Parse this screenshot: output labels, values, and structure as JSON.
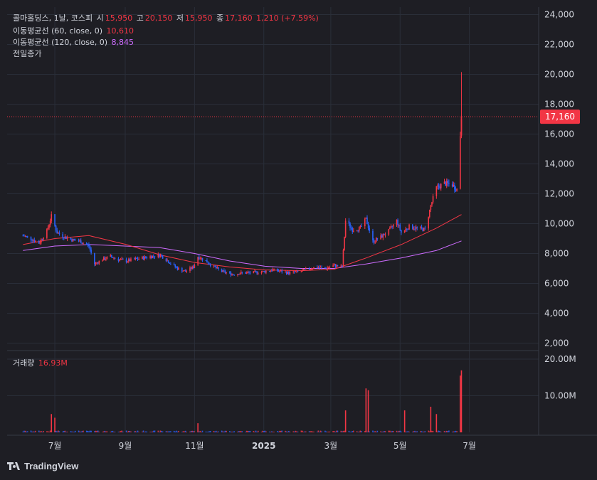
{
  "header": {
    "name": "콜마홀딩스, 1날, 코스피",
    "open_label": "시",
    "open": "15,950",
    "high_label": "고",
    "high": "20,150",
    "low_label": "저",
    "low": "15,950",
    "close_label": "종",
    "close": "17,160",
    "change": "1,210 (+7.59%)"
  },
  "ma60": {
    "label": "이동평균선 (60, close, 0)",
    "value": "10,610",
    "color": "#f23645"
  },
  "ma120": {
    "label": "이동평균선 (120, close, 0)",
    "value": "8,845",
    "color": "#ce6cff"
  },
  "prev_close_label": "전일종가",
  "volume": {
    "label": "거래량",
    "value": "16.93M"
  },
  "price_tag": "17,160",
  "brand": "TradingView",
  "colors": {
    "up": "#f23645",
    "down": "#2962ff",
    "bg": "#1e1e24",
    "grid": "#2a2e39"
  },
  "chart_data": {
    "type": "candlestick",
    "title": "콜마홀딩스, 1날, 코스피",
    "y_ticks": [
      "24,000",
      "22,000",
      "20,000",
      "18,000",
      "16,000",
      "14,000",
      "12,000",
      "10,000",
      "8,000",
      "6,000",
      "4,000",
      "2,000"
    ],
    "vol_ticks": [
      "20.00M",
      "10.00M"
    ],
    "x_ticks": [
      "7월",
      "9월",
      "11월",
      "2025",
      "3월",
      "5월",
      "7월"
    ],
    "ylim": [
      1500,
      24500
    ],
    "vol_lim": [
      0,
      20000000
    ],
    "last_close": 17160,
    "close_series": [
      {
        "x": "2024-06-03",
        "y": 9200
      },
      {
        "x": "2024-06-10",
        "y": 9000
      },
      {
        "x": "2024-06-17",
        "y": 8700
      },
      {
        "x": "2024-06-24",
        "y": 9500
      },
      {
        "x": "2024-06-28",
        "y": 10500
      },
      {
        "x": "2024-07-03",
        "y": 9400
      },
      {
        "x": "2024-07-10",
        "y": 9100
      },
      {
        "x": "2024-07-17",
        "y": 8900
      },
      {
        "x": "2024-07-24",
        "y": 8800
      },
      {
        "x": "2024-07-31",
        "y": 8500
      },
      {
        "x": "2024-08-05",
        "y": 7300
      },
      {
        "x": "2024-08-12",
        "y": 7600
      },
      {
        "x": "2024-08-19",
        "y": 7800
      },
      {
        "x": "2024-08-26",
        "y": 7600
      },
      {
        "x": "2024-09-02",
        "y": 7500
      },
      {
        "x": "2024-09-09",
        "y": 7600
      },
      {
        "x": "2024-09-23",
        "y": 7800
      },
      {
        "x": "2024-10-02",
        "y": 7900
      },
      {
        "x": "2024-10-10",
        "y": 7400
      },
      {
        "x": "2024-10-17",
        "y": 7000
      },
      {
        "x": "2024-10-24",
        "y": 6800
      },
      {
        "x": "2024-10-31",
        "y": 7100
      },
      {
        "x": "2024-11-04",
        "y": 7800
      },
      {
        "x": "2024-11-11",
        "y": 7500
      },
      {
        "x": "2024-11-18",
        "y": 7100
      },
      {
        "x": "2024-11-25",
        "y": 6800
      },
      {
        "x": "2024-12-05",
        "y": 6600
      },
      {
        "x": "2024-12-12",
        "y": 6700
      },
      {
        "x": "2024-12-19",
        "y": 6700
      },
      {
        "x": "2025-01-02",
        "y": 6800
      },
      {
        "x": "2025-01-09",
        "y": 6900
      },
      {
        "x": "2025-01-16",
        "y": 6800
      },
      {
        "x": "2025-01-23",
        "y": 6700
      },
      {
        "x": "2025-02-03",
        "y": 6800
      },
      {
        "x": "2025-02-10",
        "y": 7000
      },
      {
        "x": "2025-02-17",
        "y": 7100
      },
      {
        "x": "2025-02-24",
        "y": 7000
      },
      {
        "x": "2025-03-04",
        "y": 7200
      },
      {
        "x": "2025-03-11",
        "y": 7100
      },
      {
        "x": "2025-03-14",
        "y": 10200
      },
      {
        "x": "2025-03-20",
        "y": 9600
      },
      {
        "x": "2025-03-27",
        "y": 9700
      },
      {
        "x": "2025-04-01",
        "y": 10300
      },
      {
        "x": "2025-04-07",
        "y": 8800
      },
      {
        "x": "2025-04-14",
        "y": 9100
      },
      {
        "x": "2025-04-21",
        "y": 9500
      },
      {
        "x": "2025-04-28",
        "y": 10200
      },
      {
        "x": "2025-05-02",
        "y": 9400
      },
      {
        "x": "2025-05-09",
        "y": 9800
      },
      {
        "x": "2025-05-16",
        "y": 9700
      },
      {
        "x": "2025-05-23",
        "y": 9600
      },
      {
        "x": "2025-05-28",
        "y": 11200
      },
      {
        "x": "2025-06-02",
        "y": 12400
      },
      {
        "x": "2025-06-09",
        "y": 12700
      },
      {
        "x": "2025-06-16",
        "y": 12600
      },
      {
        "x": "2025-06-20",
        "y": 12300
      },
      {
        "x": "2025-06-23",
        "y": 15950
      },
      {
        "x": "2025-06-24",
        "y": 17160
      }
    ],
    "ma60_series": [
      {
        "x": "2024-06-03",
        "y": 8600
      },
      {
        "x": "2024-07-01",
        "y": 9000
      },
      {
        "x": "2024-07-31",
        "y": 9200
      },
      {
        "x": "2024-09-02",
        "y": 8600
      },
      {
        "x": "2024-10-02",
        "y": 7900
      },
      {
        "x": "2024-11-01",
        "y": 7400
      },
      {
        "x": "2024-12-02",
        "y": 7100
      },
      {
        "x": "2025-01-02",
        "y": 6900
      },
      {
        "x": "2025-02-03",
        "y": 6850
      },
      {
        "x": "2025-03-04",
        "y": 6950
      },
      {
        "x": "2025-04-01",
        "y": 7700
      },
      {
        "x": "2025-05-02",
        "y": 8600
      },
      {
        "x": "2025-06-02",
        "y": 9700
      },
      {
        "x": "2025-06-24",
        "y": 10610
      }
    ],
    "ma120_series": [
      {
        "x": "2024-06-03",
        "y": 8200
      },
      {
        "x": "2024-07-01",
        "y": 8500
      },
      {
        "x": "2024-08-01",
        "y": 8600
      },
      {
        "x": "2024-10-01",
        "y": 8400
      },
      {
        "x": "2024-11-01",
        "y": 8000
      },
      {
        "x": "2024-12-02",
        "y": 7500
      },
      {
        "x": "2025-01-02",
        "y": 7150
      },
      {
        "x": "2025-02-03",
        "y": 7000
      },
      {
        "x": "2025-03-04",
        "y": 7000
      },
      {
        "x": "2025-04-01",
        "y": 7300
      },
      {
        "x": "2025-05-02",
        "y": 7700
      },
      {
        "x": "2025-06-02",
        "y": 8200
      },
      {
        "x": "2025-06-24",
        "y": 8845
      }
    ],
    "volume_spikes": [
      {
        "x": "2024-06-28",
        "v": 5000000
      },
      {
        "x": "2024-07-01",
        "v": 4000000
      },
      {
        "x": "2024-11-04",
        "v": 2500000
      },
      {
        "x": "2025-03-14",
        "v": 6000000
      },
      {
        "x": "2025-04-01",
        "v": 12000000
      },
      {
        "x": "2025-04-03",
        "v": 11500000
      },
      {
        "x": "2025-05-05",
        "v": 6000000
      },
      {
        "x": "2025-05-28",
        "v": 7000000
      },
      {
        "x": "2025-06-02",
        "v": 5000000
      },
      {
        "x": "2025-06-23",
        "v": 15500000
      },
      {
        "x": "2025-06-24",
        "v": 16930000
      }
    ]
  }
}
